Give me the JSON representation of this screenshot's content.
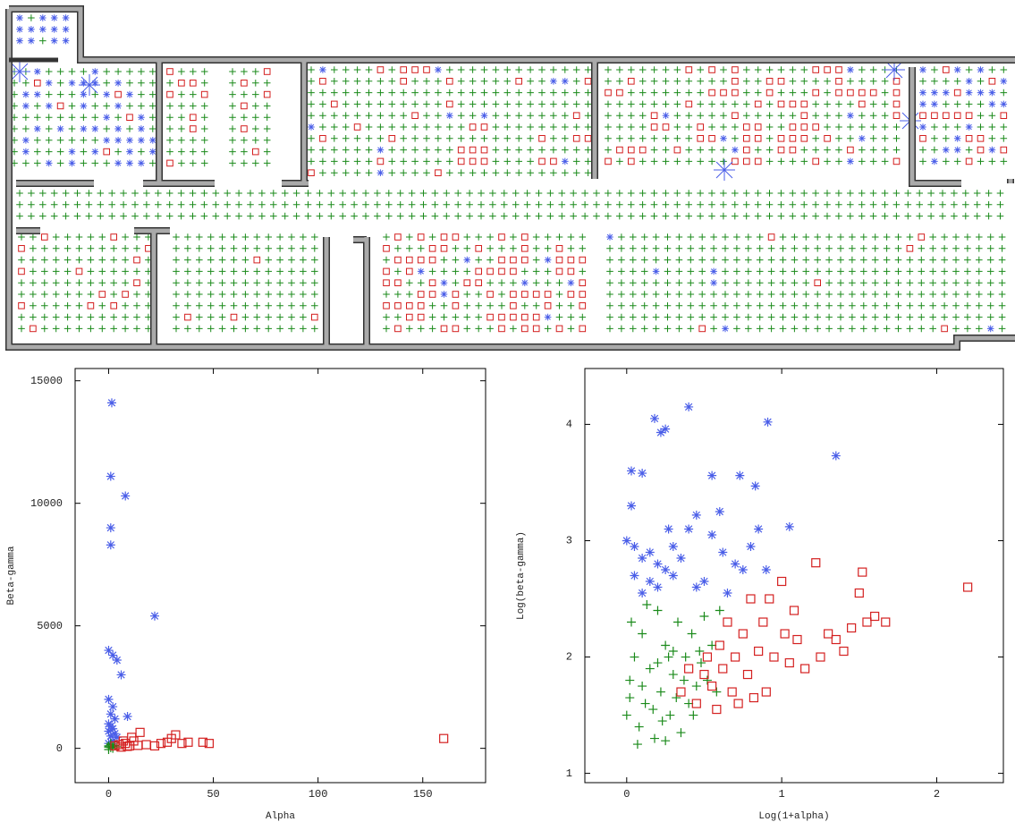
{
  "chart_data": [
    {
      "type": "scatter",
      "x_label": "Alpha",
      "y_label": "Beta-gamma",
      "xlim": [
        -16,
        180
      ],
      "ylim": [
        -1400,
        15500
      ],
      "xticks": [
        0,
        50,
        100,
        150
      ],
      "yticks": [
        0,
        5000,
        10000,
        15000
      ],
      "series": [
        {
          "color": "#4a5ee8",
          "marker": "star",
          "x": [
            1.5,
            1,
            8,
            1,
            1,
            22,
            0,
            2,
            4,
            6,
            0,
            2,
            1,
            3,
            9,
            0,
            1,
            2,
            0,
            3,
            1,
            4,
            2,
            0
          ],
          "values": [
            14100,
            11100,
            10300,
            9000,
            8300,
            5400,
            4000,
            3800,
            3600,
            3000,
            2000,
            1700,
            1400,
            1200,
            1300,
            1000,
            900,
            800,
            700,
            600,
            500,
            450,
            300,
            200
          ]
        },
        {
          "color": "#1a8a1a",
          "marker": "plus",
          "x": [
            0,
            1,
            2,
            0,
            3,
            1,
            2,
            0,
            4,
            1
          ],
          "values": [
            100,
            150,
            80,
            50,
            120,
            30,
            0,
            -50,
            60,
            200
          ]
        },
        {
          "color": "#d42020",
          "marker": "square",
          "x": [
            3,
            5,
            8,
            10,
            12,
            15,
            18,
            22,
            25,
            28,
            30,
            32,
            35,
            38,
            45,
            48,
            160,
            6,
            9,
            14,
            7,
            11
          ],
          "values": [
            100,
            150,
            200,
            100,
            300,
            650,
            150,
            100,
            200,
            250,
            400,
            550,
            200,
            250,
            250,
            200,
            400,
            50,
            80,
            120,
            300,
            450
          ]
        }
      ]
    },
    {
      "type": "scatter",
      "x_label": "Log(1+alpha)",
      "y_label": "Log(beta-gamma)",
      "xlim": [
        -0.27,
        2.43
      ],
      "ylim": [
        0.92,
        4.48
      ],
      "xticks": [
        0,
        1,
        2
      ],
      "yticks": [
        1,
        2,
        3,
        4
      ],
      "series": [
        {
          "color": "#4a5ee8",
          "marker": "star",
          "x": [
            0.18,
            0.22,
            0.25,
            0.4,
            0.91,
            1.35,
            0.03,
            0.1,
            0.55,
            0.73,
            0.83,
            0.03,
            0.45,
            0.6,
            1.05,
            0.0,
            0.05,
            0.1,
            0.15,
            0.2,
            0.25,
            0.3,
            0.35,
            0.4,
            0.5,
            0.55,
            0.62,
            0.7,
            0.75,
            0.8,
            0.85,
            0.9,
            0.2,
            0.1,
            0.05,
            0.3,
            0.45,
            0.65,
            0.27,
            0.15
          ],
          "values": [
            4.05,
            3.93,
            3.96,
            4.15,
            4.02,
            3.73,
            3.6,
            3.58,
            3.56,
            3.56,
            3.47,
            3.3,
            3.22,
            3.25,
            3.12,
            3.0,
            2.95,
            2.85,
            2.9,
            2.8,
            2.75,
            2.7,
            2.85,
            3.1,
            2.65,
            3.05,
            2.9,
            2.8,
            2.75,
            2.95,
            3.1,
            2.75,
            2.6,
            2.55,
            2.7,
            2.95,
            2.6,
            2.55,
            3.1,
            2.65
          ]
        },
        {
          "color": "#1a8a1a",
          "marker": "plus",
          "x": [
            0.0,
            0.02,
            0.05,
            0.08,
            0.1,
            0.12,
            0.15,
            0.18,
            0.2,
            0.22,
            0.25,
            0.28,
            0.3,
            0.33,
            0.35,
            0.38,
            0.4,
            0.42,
            0.45,
            0.48,
            0.5,
            0.52,
            0.55,
            0.03,
            0.07,
            0.13,
            0.17,
            0.23,
            0.27,
            0.32,
            0.37,
            0.43,
            0.02,
            0.1,
            0.2,
            0.3,
            0.25,
            0.6,
            0.58,
            0.47
          ],
          "values": [
            1.5,
            1.8,
            2.0,
            1.4,
            2.2,
            1.6,
            1.9,
            1.3,
            2.4,
            1.7,
            2.1,
            1.5,
            1.85,
            2.3,
            1.35,
            2.0,
            1.6,
            2.2,
            1.75,
            1.95,
            2.35,
            1.8,
            2.1,
            2.3,
            1.25,
            2.45,
            1.55,
            1.45,
            2.0,
            1.65,
            1.8,
            1.5,
            1.65,
            1.75,
            1.95,
            2.05,
            1.28,
            2.4,
            1.7,
            2.05
          ]
        },
        {
          "color": "#d42020",
          "marker": "square",
          "x": [
            0.35,
            0.4,
            0.45,
            0.5,
            0.52,
            0.55,
            0.58,
            0.6,
            0.62,
            0.65,
            0.68,
            0.7,
            0.72,
            0.75,
            0.78,
            0.8,
            0.82,
            0.85,
            0.88,
            0.9,
            0.92,
            0.95,
            1.0,
            1.02,
            1.05,
            1.08,
            1.1,
            1.15,
            1.22,
            1.25,
            1.3,
            1.35,
            1.4,
            1.45,
            1.5,
            1.52,
            1.55,
            1.6,
            1.67,
            2.2
          ],
          "values": [
            1.7,
            1.9,
            1.6,
            1.85,
            2.0,
            1.75,
            1.55,
            2.1,
            1.9,
            2.3,
            1.7,
            2.0,
            1.6,
            2.2,
            1.85,
            2.5,
            1.65,
            2.05,
            2.3,
            1.7,
            2.5,
            2.0,
            2.65,
            2.2,
            1.95,
            2.4,
            2.15,
            1.9,
            2.81,
            2.0,
            2.2,
            2.15,
            2.05,
            2.25,
            2.55,
            2.73,
            2.3,
            2.35,
            2.3,
            2.6
          ]
        }
      ]
    }
  ]
}
